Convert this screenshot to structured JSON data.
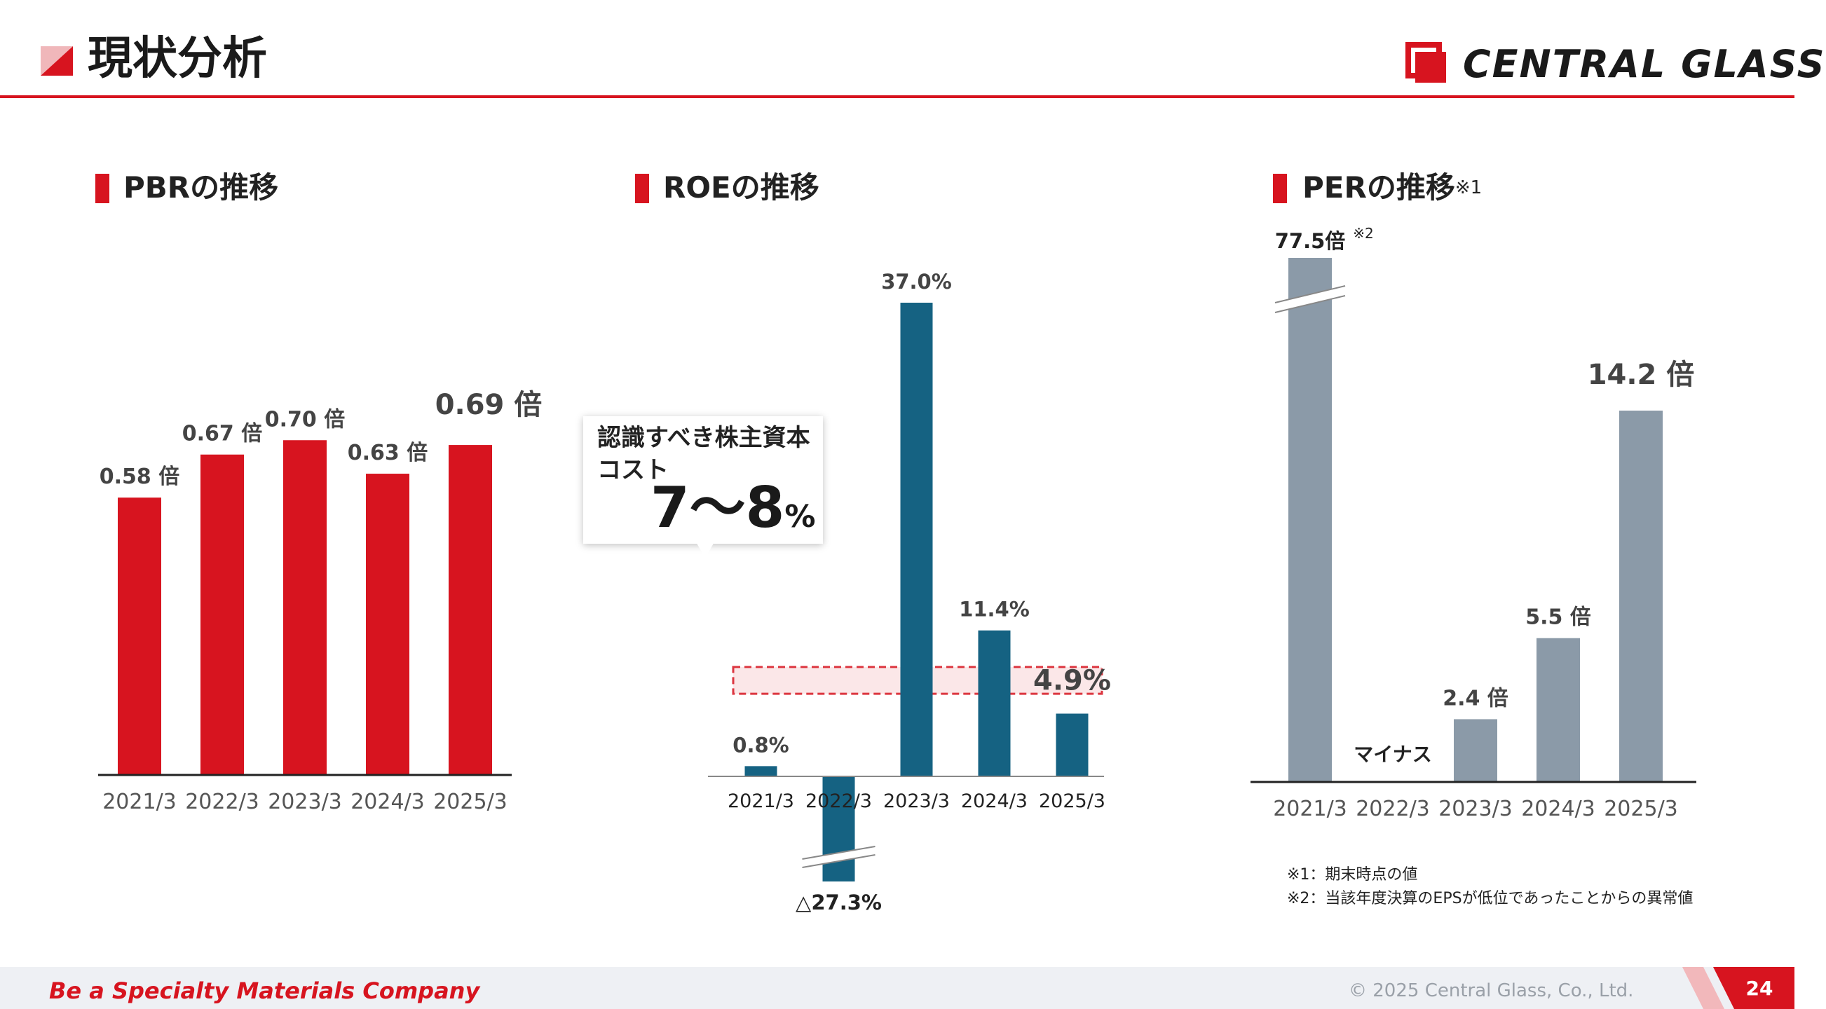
{
  "header": {
    "title": "現状分析",
    "logo_text": "CENTRAL  GLASS"
  },
  "colors": {
    "accent": "#d7141f",
    "roe_bar": "#156282",
    "per_bar": "#8b9aa8"
  },
  "chart_data": [
    {
      "type": "bar",
      "title": "PBRの推移",
      "categories": [
        "2021/3",
        "2022/3",
        "2023/3",
        "2024/3",
        "2025/3"
      ],
      "values": [
        0.58,
        0.67,
        0.7,
        0.63,
        0.69
      ],
      "labels": [
        "0.58 倍",
        "0.67 倍",
        "0.70 倍",
        "0.63 倍",
        "0.69 倍"
      ],
      "ylim": [
        0,
        0.8
      ]
    },
    {
      "type": "bar",
      "title": "ROEの推移",
      "categories": [
        "2021/3",
        "2022/3",
        "2023/3",
        "2024/3",
        "2025/3"
      ],
      "values": [
        0.8,
        -27.3,
        37.0,
        11.4,
        4.9
      ],
      "labels": [
        "0.8%",
        "△27.3%",
        "37.0%",
        "11.4%",
        "4.9%"
      ],
      "axis_break": true,
      "cost_of_equity_band": [
        7,
        8
      ],
      "callout": {
        "text": "認識すべき株主資本コスト",
        "range": "7～8",
        "unit": "%"
      }
    },
    {
      "type": "bar",
      "title": "PERの推移",
      "title_note": "※1",
      "categories": [
        "2021/3",
        "2022/3",
        "2023/3",
        "2024/3",
        "2025/3"
      ],
      "values": [
        77.5,
        null,
        2.4,
        5.5,
        14.2
      ],
      "labels": [
        "77.5倍",
        "マイナス",
        "2.4 倍",
        "5.5 倍",
        "14.2 倍"
      ],
      "first_label_note": "※2",
      "axis_break": true
    }
  ],
  "notes": [
    "※1：期末時点の値",
    "※2：当該年度決算のEPSが低位であったことからの異常値"
  ],
  "footer": {
    "slogan": "Be a Specialty Materials Company",
    "copyright": "© 2025 Central Glass, Co., Ltd.",
    "page": "24"
  }
}
